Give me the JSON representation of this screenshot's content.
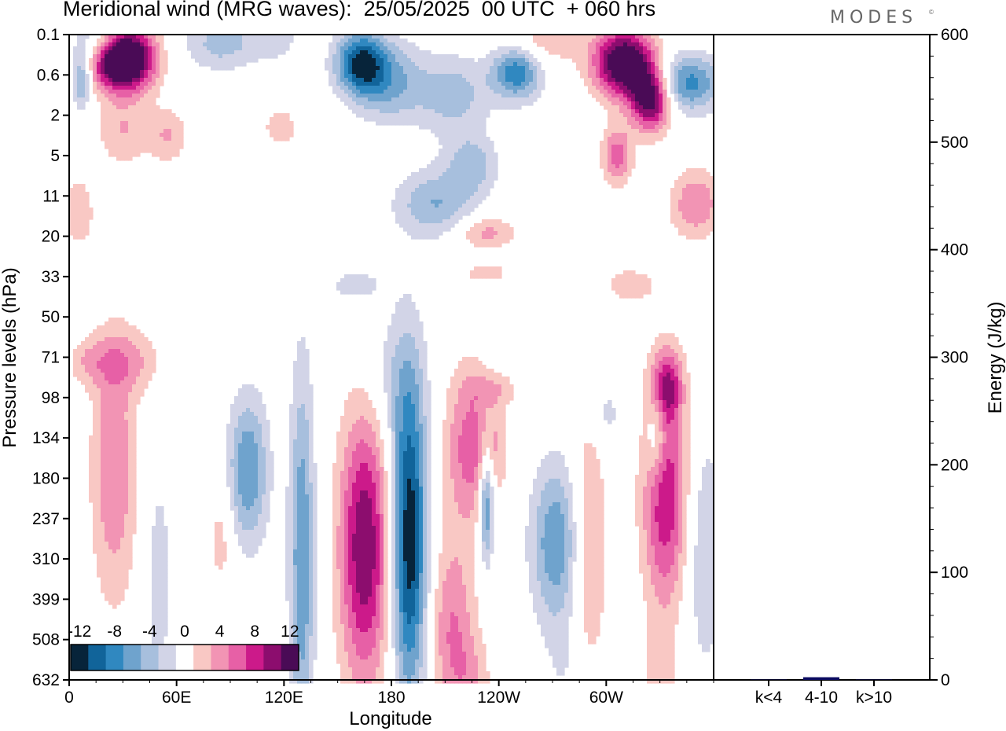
{
  "title": "Meridional wind (MRG waves):  25/05/2025  00 UTC  + 060 hrs",
  "brand": "MODES",
  "brand_mark": "©",
  "colors": {
    "neg6": "#07243a",
    "neg5": "#11649a",
    "neg4": "#3088c0",
    "neg3": "#6fa3cd",
    "neg2": "#a7bfdd",
    "neg1": "#d2d4e7",
    "zero": "#ffffff",
    "pos1": "#f9c8c4",
    "pos2": "#f294b4",
    "pos3": "#e760a6",
    "pos4": "#cc1a8a",
    "pos5": "#8c0d6e",
    "pos6": "#4a0b56",
    "bar": "#0a0a60"
  },
  "chart_data": [
    {
      "type": "heatmap",
      "title": "Meridional wind (MRG waves):  25/05/2025  00 UTC  + 060 hrs",
      "xlabel": "Longitude",
      "ylabel": "Pressure levels (hPa)",
      "x_ticks": [
        "0",
        "60E",
        "120E",
        "180",
        "120W",
        "60W"
      ],
      "x_tick_values": [
        0,
        60,
        120,
        180,
        240,
        300
      ],
      "xlim": [
        0,
        360
      ],
      "y_ticks": [
        "0.1",
        "0.6",
        "2",
        "5",
        "11",
        "20",
        "33",
        "50",
        "71",
        "98",
        "134",
        "180",
        "237",
        "310",
        "399",
        "508",
        "632"
      ],
      "colorbar": {
        "labels": [
          "-12",
          "-8",
          "-4",
          "0",
          "4",
          "8",
          "12"
        ],
        "levels": [
          -14,
          -12,
          -10,
          -8,
          -6,
          -4,
          -2,
          2,
          4,
          6,
          8,
          10,
          12,
          14
        ]
      },
      "blobs": [
        {
          "x": 35,
          "lev": 0.6,
          "sx": 10,
          "sy": 0.55,
          "v": 15
        },
        {
          "x": 22,
          "lev": 0.7,
          "sx": 9,
          "sy": 0.5,
          "v": 9
        },
        {
          "x": 7,
          "lev": 1.1,
          "sx": 4,
          "sy": 0.5,
          "v": -7
        },
        {
          "x": 14,
          "lev": 0.15,
          "sx": 8,
          "sy": 0.4,
          "v": -4
        },
        {
          "x": 30,
          "lev": 2.4,
          "sx": 10,
          "sy": 0.6,
          "v": 4
        },
        {
          "x": 55,
          "lev": 2.5,
          "sx": 8,
          "sy": 0.5,
          "v": 4
        },
        {
          "x": 85,
          "lev": 0.2,
          "sx": 14,
          "sy": 0.5,
          "v": -5
        },
        {
          "x": 115,
          "lev": 0.1,
          "sx": 10,
          "sy": 0.4,
          "v": -3
        },
        {
          "x": 163,
          "lev": 0.7,
          "sx": 10,
          "sy": 0.55,
          "v": -12
        },
        {
          "x": 180,
          "lev": 1.2,
          "sx": 14,
          "sy": 0.7,
          "v": -6
        },
        {
          "x": 215,
          "lev": 1.5,
          "sx": 14,
          "sy": 0.7,
          "v": -5
        },
        {
          "x": 250,
          "lev": 0.9,
          "sx": 10,
          "sy": 0.5,
          "v": -10
        },
        {
          "x": 205,
          "lev": 4.2,
          "sx": 16,
          "sy": 0.6,
          "v": -6
        },
        {
          "x": 225,
          "lev": 3.2,
          "sx": 10,
          "sy": 0.5,
          "v": -5
        },
        {
          "x": 262,
          "lev": 0.2,
          "sx": 16,
          "sy": 0.45,
          "v": 4
        },
        {
          "x": 310,
          "lev": 0.7,
          "sx": 12,
          "sy": 0.6,
          "v": 16
        },
        {
          "x": 325,
          "lev": 1.6,
          "sx": 8,
          "sy": 0.55,
          "v": 14
        },
        {
          "x": 345,
          "lev": 1.2,
          "sx": 14,
          "sy": 0.5,
          "v": -9
        },
        {
          "x": 306,
          "lev": 3.0,
          "sx": 6,
          "sy": 0.5,
          "v": 7
        },
        {
          "x": 350,
          "lev": 4.2,
          "sx": 10,
          "sy": 0.6,
          "v": 6
        },
        {
          "x": 5,
          "lev": 4.4,
          "sx": 6,
          "sy": 0.6,
          "v": 4
        },
        {
          "x": 118,
          "lev": 2.3,
          "sx": 8,
          "sy": 0.4,
          "v": 3
        },
        {
          "x": 232,
          "lev": 4.9,
          "sx": 12,
          "sy": 0.3,
          "v": 5
        },
        {
          "x": 233,
          "lev": 5.9,
          "sx": 10,
          "sy": 0.2,
          "v": 3
        },
        {
          "x": 313,
          "lev": 6.2,
          "sx": 12,
          "sy": 0.35,
          "v": 3
        },
        {
          "x": 160,
          "lev": 6.2,
          "sx": 12,
          "sy": 0.35,
          "v": -3
        },
        {
          "x": 33,
          "lev": 8.1,
          "sx": 14,
          "sy": 0.55,
          "v": 4
        },
        {
          "x": 10,
          "lev": 8.1,
          "sx": 8,
          "sy": 0.4,
          "v": 3
        },
        {
          "x": 238,
          "lev": 8.8,
          "sx": 10,
          "sy": 0.3,
          "v": 3
        },
        {
          "x": 180,
          "lev": 8.5,
          "sx": 12,
          "sy": 1.2,
          "v": -3
        },
        {
          "x": 236,
          "lev": 10.3,
          "sx": 6,
          "sy": 0.7,
          "v": 3
        },
        {
          "x": 334,
          "lev": 8.7,
          "sx": 6,
          "sy": 0.6,
          "v": 8
        },
        {
          "x": 300,
          "lev": 9.4,
          "sx": 6,
          "sy": 0.5,
          "v": -3
        },
        {
          "x": 328,
          "lev": 10.0,
          "sx": 4,
          "sy": 0.8,
          "v": -5
        },
        {
          "x": 25,
          "lev": 10.8,
          "sx": 9,
          "sy": 2.3,
          "v": 6
        },
        {
          "x": 100,
          "lev": 10.8,
          "sx": 8,
          "sy": 1.3,
          "v": -8
        },
        {
          "x": 50,
          "lev": 13.5,
          "sx": 6,
          "sy": 2.2,
          "v": -3
        },
        {
          "x": 130,
          "lev": 13.0,
          "sx": 5,
          "sy": 3.3,
          "v": -8
        },
        {
          "x": 165,
          "lev": 12.7,
          "sx": 10,
          "sy": 2.4,
          "v": 12
        },
        {
          "x": 190,
          "lev": 12.5,
          "sx": 7,
          "sy": 2.8,
          "v": -14
        },
        {
          "x": 224,
          "lev": 10.2,
          "sx": 10,
          "sy": 1.4,
          "v": 7
        },
        {
          "x": 214,
          "lev": 14.7,
          "sx": 9,
          "sy": 1.6,
          "v": 6
        },
        {
          "x": 233,
          "lev": 11.5,
          "sx": 3,
          "sy": 1.1,
          "v": -10
        },
        {
          "x": 272,
          "lev": 12.6,
          "sx": 10,
          "sy": 1.4,
          "v": -8
        },
        {
          "x": 290,
          "lev": 12.8,
          "sx": 7,
          "sy": 2.4,
          "v": 5
        },
        {
          "x": 333,
          "lev": 11.4,
          "sx": 9,
          "sy": 2.0,
          "v": 10
        },
        {
          "x": 355,
          "lev": 12.8,
          "sx": 8,
          "sy": 2.2,
          "v": -4
        },
        {
          "x": 85,
          "lev": 12.5,
          "sx": 5,
          "sy": 1.0,
          "v": 3
        },
        {
          "x": 225,
          "lev": 16.0,
          "sx": 8,
          "sy": 0.8,
          "v": 3
        },
        {
          "x": 330,
          "lev": 15.9,
          "sx": 6,
          "sy": 0.8,
          "v": 3
        },
        {
          "x": 280,
          "lev": 15.7,
          "sx": 10,
          "sy": 1.0,
          "v": -2
        }
      ]
    },
    {
      "type": "bar",
      "ylabel": "Energy (J/kg)",
      "categories": [
        "k<4",
        "4-10",
        "k>10"
      ],
      "values": [
        0.3,
        2.5,
        0.3
      ],
      "ylim": [
        0,
        600
      ],
      "y_ticks": [
        "0",
        "100",
        "200",
        "300",
        "400",
        "500",
        "600"
      ]
    }
  ]
}
